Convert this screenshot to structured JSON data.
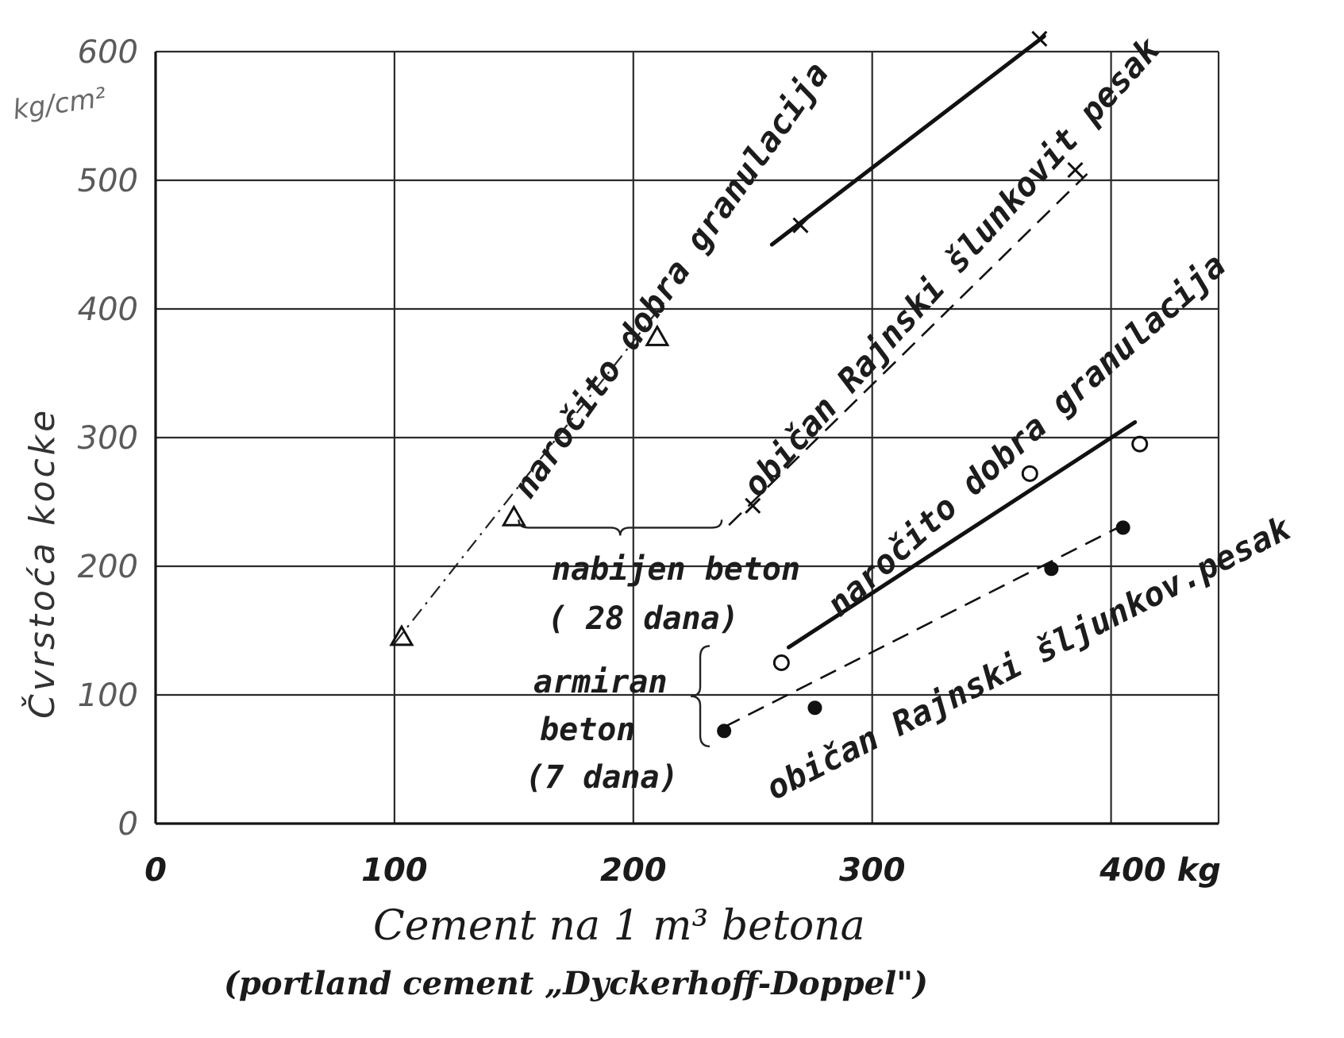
{
  "chart_data": {
    "type": "line",
    "xlabel": "Cement na 1 m³ betona",
    "xlabel_sub": "(portland cement „Dyckerhoff-Doppel\")",
    "ylabel": "Čvrstoća kocke",
    "y_unit": "kg/cm²",
    "x_unit": "kg",
    "xlim": [
      0,
      445
    ],
    "ylim": [
      0,
      600
    ],
    "xticks": [
      0,
      100,
      200,
      300,
      400
    ],
    "xtick_labels": [
      "0",
      "100",
      "200",
      "300",
      "400 kg"
    ],
    "yticks": [
      0,
      100,
      200,
      300,
      400,
      500,
      600
    ],
    "ytick_labels": [
      "0",
      "100",
      "200",
      "300",
      "400",
      "500",
      "600"
    ],
    "grid": true,
    "series": [
      {
        "name": "naročito dobra granulacija",
        "group": "nabijen beton (28 dana)",
        "style": "dashdot",
        "marker": "triangle",
        "points": [
          [
            103,
            145
          ],
          [
            150,
            238
          ],
          [
            210,
            378
          ]
        ],
        "line": [
          [
            100,
            140
          ],
          [
            215,
            410
          ]
        ]
      },
      {
        "name": "naročito dobra granulacija",
        "group": "nabijen beton (28 dana)",
        "style": "solid",
        "marker": "x",
        "points": [
          [
            270,
            465
          ],
          [
            370,
            610
          ]
        ],
        "line": [
          [
            258,
            450
          ],
          [
            372,
            612
          ]
        ]
      },
      {
        "name": "običan Rajnski šlunkovit pesak",
        "group": "nabijen beton (28 dana)",
        "style": "dashed",
        "marker": "x",
        "points": [
          [
            250,
            247
          ],
          [
            385,
            508
          ]
        ],
        "line": [
          [
            240,
            232
          ],
          [
            390,
            505
          ]
        ]
      },
      {
        "name": "naročito dobra granulacija",
        "group": "armiran beton (7 dana)",
        "style": "solid",
        "marker": "open-circle",
        "points": [
          [
            262,
            125
          ],
          [
            366,
            272
          ],
          [
            412,
            295
          ]
        ],
        "line": [
          [
            265,
            137
          ],
          [
            410,
            312
          ]
        ]
      },
      {
        "name": "običan Rajnski šljunkov.pesak",
        "group": "armiran beton (7 dana)",
        "style": "dashed",
        "marker": "filled-circle",
        "points": [
          [
            238,
            72
          ],
          [
            276,
            90
          ],
          [
            375,
            198
          ],
          [
            405,
            230
          ]
        ],
        "line": [
          [
            238,
            75
          ],
          [
            405,
            232
          ]
        ]
      }
    ],
    "annotations": [
      {
        "text": "nabijen beton",
        "id": "ann1"
      },
      {
        "text": "( 28 dana)",
        "id": "ann2"
      },
      {
        "text": "armiran",
        "id": "ann3"
      },
      {
        "text": "beton",
        "id": "ann4"
      },
      {
        "text": "(7 dana)",
        "id": "ann5"
      }
    ]
  }
}
